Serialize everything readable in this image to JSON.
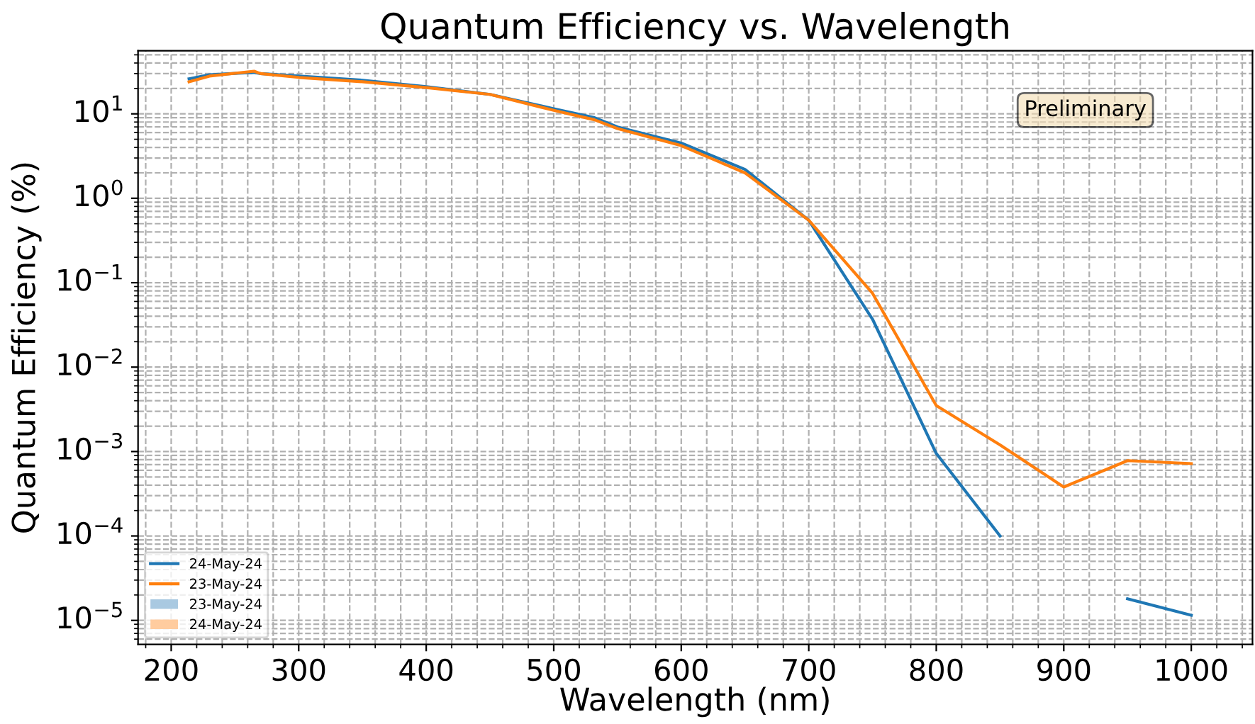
{
  "chart_data": {
    "type": "line",
    "title": "Quantum Efficiency vs. Wavelength",
    "xlabel": "Wavelength (nm)",
    "ylabel": "Quantum Efficiency (%)",
    "x": [
      214,
      230,
      265,
      270,
      300,
      350,
      400,
      450,
      500,
      532,
      550,
      600,
      650,
      700,
      750,
      800,
      850,
      900,
      950,
      1000
    ],
    "series": [
      {
        "name": "24-May-24",
        "color": "#1f77b4",
        "values": [
          26,
          29,
          31,
          30,
          28,
          25,
          21,
          17,
          11.5,
          9,
          7,
          4.5,
          2.2,
          0.55,
          0.037,
          0.00095,
          0.0001,
          null,
          1.8e-05,
          1.15e-05
        ]
      },
      {
        "name": "23-May-24",
        "color": "#ff7f0e",
        "values": [
          24,
          28,
          32,
          30,
          27,
          24,
          20.5,
          17,
          11,
          8.5,
          6.7,
          4.2,
          2.0,
          0.55,
          0.075,
          0.0035,
          0.0012,
          0.00038,
          0.00078,
          0.00072
        ]
      },
      {
        "name": "23-May-24",
        "type": "area",
        "color": "#a9c9e1",
        "values": [
          null,
          null,
          null,
          null,
          null,
          null,
          null,
          null,
          null,
          null,
          null,
          null,
          null,
          null,
          null,
          null,
          null,
          null,
          null,
          null
        ]
      },
      {
        "name": "24-May-24",
        "type": "area",
        "color": "#ffcc9f",
        "values": [
          null,
          null,
          null,
          null,
          null,
          null,
          null,
          null,
          null,
          null,
          null,
          null,
          null,
          null,
          null,
          null,
          null,
          null,
          null,
          null
        ]
      }
    ],
    "log": "y",
    "xlim": [
      174,
      1048
    ],
    "xticks": [
      200,
      300,
      400,
      500,
      600,
      700,
      800,
      900,
      1000
    ],
    "ylim": [
      5.2e-06,
      56
    ],
    "yticks": [
      {
        "value": 10,
        "label": "10$^{1}$"
      },
      {
        "value": 1,
        "label": "10$^{0}$"
      },
      {
        "value": 0.1,
        "label": "10$^{−1}$"
      },
      {
        "value": 0.01,
        "label": "10$^{−2}$"
      },
      {
        "value": 0.001,
        "label": "10$^{−3}$"
      },
      {
        "value": 0.0001,
        "label": "10$^{−4}$"
      },
      {
        "value": 1e-05,
        "label": "10$^{−5}$"
      }
    ],
    "grid": true,
    "legend": "bottom left",
    "annotations": [
      "Preliminary"
    ]
  }
}
